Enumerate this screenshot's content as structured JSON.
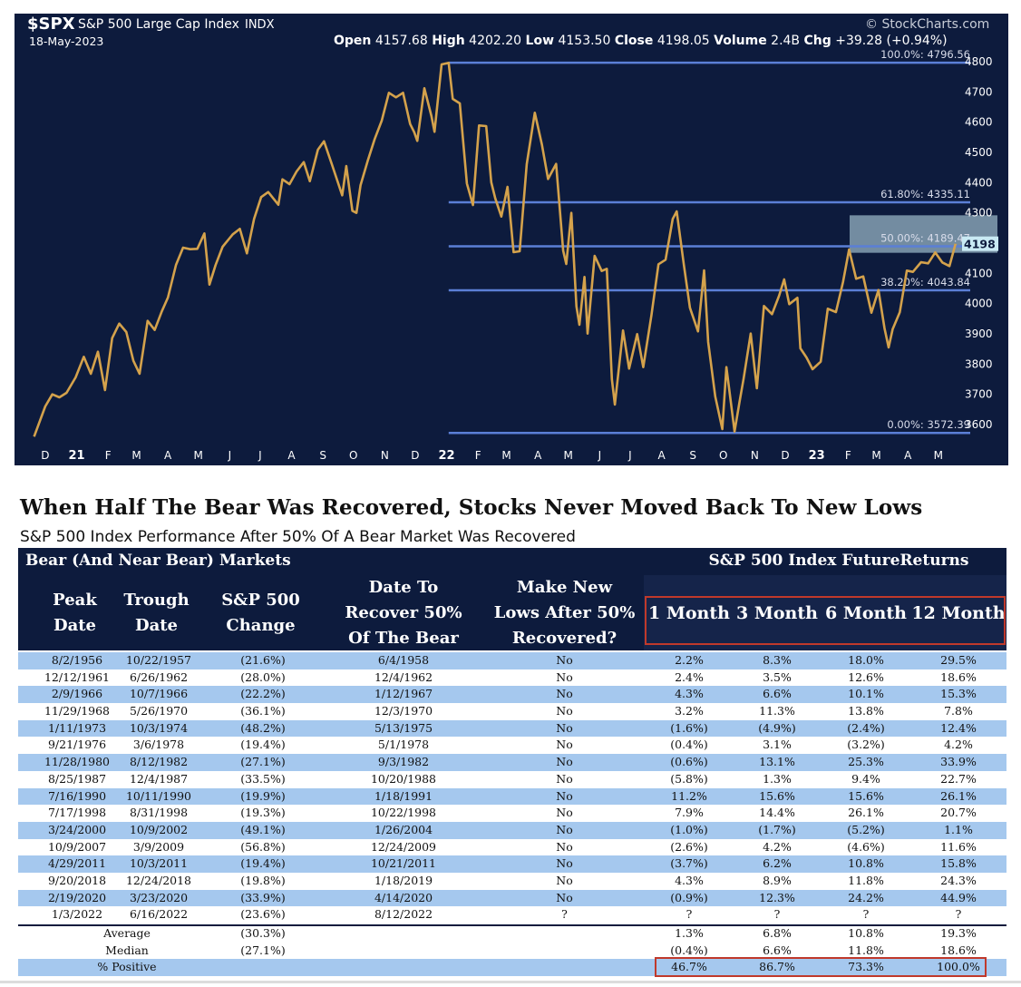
{
  "chart_header": {
    "symbol": "$SPX",
    "name": "S&P 500 Large Cap Index",
    "exchange": "INDX",
    "date": "18-May-2023",
    "source": "© StockCharts.com",
    "open_label": "Open",
    "open": "4157.68",
    "high_label": "High",
    "high": "4202.20",
    "low_label": "Low",
    "low": "4153.50",
    "close_label": "Close",
    "close": "4198.05",
    "volume_label": "Volume",
    "volume": "2.4B",
    "chg_label": "Chg",
    "chg": "+39.28 (+0.94%)"
  },
  "colors": {
    "panel_bg": "#0d1b3d",
    "price_line": "#d4a24c",
    "fib_line": "#5b7fd6",
    "table_header_bg": "#0d1b3d",
    "row_blue": "#a5c8ee",
    "highlight_box": "#c0392b",
    "last_price_bg": "#c9eaf4"
  },
  "chart_data": {
    "type": "line",
    "ylim": [
      3540,
      4830
    ],
    "y_ticks": [
      "4800",
      "4700",
      "4600",
      "4500",
      "4400",
      "4300",
      "4200",
      "4100",
      "4000",
      "3900",
      "3800",
      "3700",
      "3600"
    ],
    "x_ticks": [
      "D",
      "21",
      "F",
      "M",
      "A",
      "M",
      "J",
      "J",
      "A",
      "S",
      "O",
      "N",
      "D",
      "22",
      "F",
      "M",
      "A",
      "M",
      "J",
      "J",
      "A",
      "S",
      "O",
      "N",
      "D",
      "23",
      "F",
      "M",
      "A",
      "M"
    ],
    "last_price_label": "4198",
    "fib_levels": [
      {
        "label": "100.0%: 4796.56",
        "value": 4796.56
      },
      {
        "label": "61.80%: 4335.11",
        "value": 4335.11
      },
      {
        "label": "50.00%: 4189.47",
        "value": 4189.47
      },
      {
        "label": "38.20%: 4043.84",
        "value": 4043.84
      },
      {
        "label": "0.00%: 3572.39",
        "value": 3572.39
      }
    ],
    "x_months": [
      "2020-12",
      "2021-01",
      "2021-02",
      "2021-03",
      "2021-04",
      "2021-05",
      "2021-06",
      "2021-07",
      "2021-08",
      "2021-09",
      "2021-10",
      "2021-11",
      "2021-12",
      "2022-01",
      "2022-02",
      "2022-03",
      "2022-04",
      "2022-05",
      "2022-06",
      "2022-07",
      "2022-08",
      "2022-09",
      "2022-10",
      "2022-11",
      "2022-12",
      "2023-01",
      "2023-02",
      "2023-03",
      "2023-04",
      "2023-05"
    ],
    "series": [
      {
        "x": [
          "2020-11-20",
          "2020-12-01",
          "2020-12-08",
          "2020-12-15",
          "2020-12-22",
          "2020-12-31",
          "2021-01-08",
          "2021-01-15",
          "2021-01-22",
          "2021-01-29",
          "2021-02-05",
          "2021-02-12",
          "2021-02-19",
          "2021-02-26",
          "2021-03-04",
          "2021-03-12",
          "2021-03-19",
          "2021-03-26",
          "2021-04-01",
          "2021-04-09",
          "2021-04-16",
          "2021-04-23",
          "2021-04-30",
          "2021-05-07",
          "2021-05-12",
          "2021-05-18",
          "2021-05-25",
          "2021-06-04",
          "2021-06-11",
          "2021-06-18",
          "2021-06-25",
          "2021-07-02",
          "2021-07-09",
          "2021-07-19",
          "2021-07-23",
          "2021-07-30",
          "2021-08-06",
          "2021-08-13",
          "2021-08-19",
          "2021-08-27",
          "2021-09-02",
          "2021-09-10",
          "2021-09-20",
          "2021-09-24",
          "2021-09-30",
          "2021-10-04",
          "2021-10-08",
          "2021-10-15",
          "2021-10-22",
          "2021-10-29",
          "2021-11-05",
          "2021-11-12",
          "2021-11-19",
          "2021-11-26",
          "2021-11-30",
          "2021-12-03",
          "2021-12-10",
          "2021-12-17",
          "2021-12-20",
          "2021-12-27",
          "2022-01-03",
          "2022-01-07",
          "2022-01-14",
          "2022-01-21",
          "2022-01-27",
          "2022-02-02",
          "2022-02-09",
          "2022-02-14",
          "2022-02-18",
          "2022-02-24",
          "2022-03-02",
          "2022-03-08",
          "2022-03-14",
          "2022-03-21",
          "2022-03-29",
          "2022-04-05",
          "2022-04-11",
          "2022-04-19",
          "2022-04-26",
          "2022-04-29",
          "2022-05-04",
          "2022-05-09",
          "2022-05-12",
          "2022-05-17",
          "2022-05-20",
          "2022-05-27",
          "2022-06-03",
          "2022-06-08",
          "2022-06-13",
          "2022-06-16",
          "2022-06-24",
          "2022-06-30",
          "2022-07-08",
          "2022-07-14",
          "2022-07-22",
          "2022-07-29",
          "2022-08-05",
          "2022-08-12",
          "2022-08-16",
          "2022-08-23",
          "2022-08-29",
          "2022-09-06",
          "2022-09-12",
          "2022-09-16",
          "2022-09-23",
          "2022-09-30",
          "2022-10-04",
          "2022-10-12",
          "2022-10-17",
          "2022-10-21",
          "2022-10-28",
          "2022-11-03",
          "2022-11-10",
          "2022-11-18",
          "2022-11-25",
          "2022-11-30",
          "2022-12-05",
          "2022-12-13",
          "2022-12-16",
          "2022-12-22",
          "2022-12-28",
          "2023-01-05",
          "2023-01-12",
          "2023-01-20",
          "2023-01-27",
          "2023-02-02",
          "2023-02-09",
          "2023-02-16",
          "2023-02-24",
          "2023-03-03",
          "2023-03-09",
          "2023-03-13",
          "2023-03-17",
          "2023-03-24",
          "2023-03-31",
          "2023-04-06",
          "2023-04-14",
          "2023-04-21",
          "2023-04-28",
          "2023-05-05",
          "2023-05-12",
          "2023-05-18"
        ],
        "values": [
          3560,
          3660,
          3700,
          3690,
          3705,
          3756,
          3824,
          3768,
          3841,
          3714,
          3886,
          3934,
          3906,
          3811,
          3768,
          3943,
          3913,
          3974,
          4020,
          4128,
          4185,
          4180,
          4181,
          4232,
          4063,
          4127,
          4188,
          4229,
          4247,
          4166,
          4280,
          4352,
          4369,
          4327,
          4411,
          4395,
          4437,
          4468,
          4405,
          4509,
          4537,
          4458,
          4358,
          4455,
          4307,
          4300,
          4391,
          4471,
          4544,
          4605,
          4697,
          4682,
          4697,
          4594,
          4567,
          4538,
          4712,
          4620,
          4568,
          4791,
          4796,
          4677,
          4662,
          4397,
          4326,
          4589,
          4587,
          4401,
          4348,
          4288,
          4386,
          4170,
          4173,
          4461,
          4631,
          4525,
          4412,
          4462,
          4175,
          4131,
          4300,
          3991,
          3930,
          4088,
          3901,
          4158,
          4108,
          4115,
          3750,
          3666,
          3911,
          3785,
          3899,
          3790,
          3961,
          4130,
          4145,
          4280,
          4305,
          4128,
          3986,
          3908,
          4110,
          3873,
          3693,
          3585,
          3790,
          3577,
          3677,
          3752,
          3901,
          3720,
          3992,
          3965,
          4026,
          4080,
          3998,
          4019,
          3852,
          3822,
          3783,
          3808,
          3983,
          3972,
          4071,
          4179,
          4082,
          4090,
          3970,
          4045,
          3918,
          3855,
          3916,
          3971,
          4109,
          4105,
          4137,
          4133,
          4169,
          4136,
          4124,
          4198
        ]
      }
    ]
  },
  "table": {
    "title": "When Half The Bear Was Recovered, Stocks Never Moved Back To New Lows",
    "subtitle": "S&P 500 Index Performance After 50% Of A Bear Market Was Recovered",
    "group_left": "Bear (And Near Bear) Markets",
    "group_right": "S&P 500 Index FutureReturns",
    "headers": {
      "peak": [
        "Peak",
        "Date"
      ],
      "trough": [
        "Trough",
        "Date"
      ],
      "change": [
        "S&P 500",
        "Change"
      ],
      "recover": [
        "Date To",
        "Recover 50%",
        "Of The Bear"
      ],
      "newlows": [
        "Make New",
        "Lows After 50%",
        "Recovered?"
      ],
      "m1": "1 Month",
      "m3": "3 Month",
      "m6": "6 Month",
      "m12": "12 Month"
    },
    "rows": [
      [
        "8/2/1956",
        "10/22/1957",
        "(21.6%)",
        "6/4/1958",
        "No",
        "2.2%",
        "8.3%",
        "18.0%",
        "29.5%"
      ],
      [
        "12/12/1961",
        "6/26/1962",
        "(28.0%)",
        "12/4/1962",
        "No",
        "2.4%",
        "3.5%",
        "12.6%",
        "18.6%"
      ],
      [
        "2/9/1966",
        "10/7/1966",
        "(22.2%)",
        "1/12/1967",
        "No",
        "4.3%",
        "6.6%",
        "10.1%",
        "15.3%"
      ],
      [
        "11/29/1968",
        "5/26/1970",
        "(36.1%)",
        "12/3/1970",
        "No",
        "3.2%",
        "11.3%",
        "13.8%",
        "7.8%"
      ],
      [
        "1/11/1973",
        "10/3/1974",
        "(48.2%)",
        "5/13/1975",
        "No",
        "(1.6%)",
        "(4.9%)",
        "(2.4%)",
        "12.4%"
      ],
      [
        "9/21/1976",
        "3/6/1978",
        "(19.4%)",
        "5/1/1978",
        "No",
        "(0.4%)",
        "3.1%",
        "(3.2%)",
        "4.2%"
      ],
      [
        "11/28/1980",
        "8/12/1982",
        "(27.1%)",
        "9/3/1982",
        "No",
        "(0.6%)",
        "13.1%",
        "25.3%",
        "33.9%"
      ],
      [
        "8/25/1987",
        "12/4/1987",
        "(33.5%)",
        "10/20/1988",
        "No",
        "(5.8%)",
        "1.3%",
        "9.4%",
        "22.7%"
      ],
      [
        "7/16/1990",
        "10/11/1990",
        "(19.9%)",
        "1/18/1991",
        "No",
        "11.2%",
        "15.6%",
        "15.6%",
        "26.1%"
      ],
      [
        "7/17/1998",
        "8/31/1998",
        "(19.3%)",
        "10/22/1998",
        "No",
        "7.9%",
        "14.4%",
        "26.1%",
        "20.7%"
      ],
      [
        "3/24/2000",
        "10/9/2002",
        "(49.1%)",
        "1/26/2004",
        "No",
        "(1.0%)",
        "(1.7%)",
        "(5.2%)",
        "1.1%"
      ],
      [
        "10/9/2007",
        "3/9/2009",
        "(56.8%)",
        "12/24/2009",
        "No",
        "(2.6%)",
        "4.2%",
        "(4.6%)",
        "11.6%"
      ],
      [
        "4/29/2011",
        "10/3/2011",
        "(19.4%)",
        "10/21/2011",
        "No",
        "(3.7%)",
        "6.2%",
        "10.8%",
        "15.8%"
      ],
      [
        "9/20/2018",
        "12/24/2018",
        "(19.8%)",
        "1/18/2019",
        "No",
        "4.3%",
        "8.9%",
        "11.8%",
        "24.3%"
      ],
      [
        "2/19/2020",
        "3/23/2020",
        "(33.9%)",
        "4/14/2020",
        "No",
        "(0.9%)",
        "12.3%",
        "24.2%",
        "44.9%"
      ],
      [
        "1/3/2022",
        "6/16/2022",
        "(23.6%)",
        "8/12/2022",
        "?",
        "?",
        "?",
        "?",
        "?"
      ]
    ],
    "summary": [
      {
        "label": "Average",
        "change": "(30.3%)",
        "m1": "1.3%",
        "m3": "6.8%",
        "m6": "10.8%",
        "m12": "19.3%"
      },
      {
        "label": "Median",
        "change": "(27.1%)",
        "m1": "(0.4%)",
        "m3": "6.6%",
        "m6": "11.8%",
        "m12": "18.6%"
      },
      {
        "label": "% Positive",
        "change": "",
        "m1": "46.7%",
        "m3": "86.7%",
        "m6": "73.3%",
        "m12": "100.0%"
      }
    ]
  }
}
